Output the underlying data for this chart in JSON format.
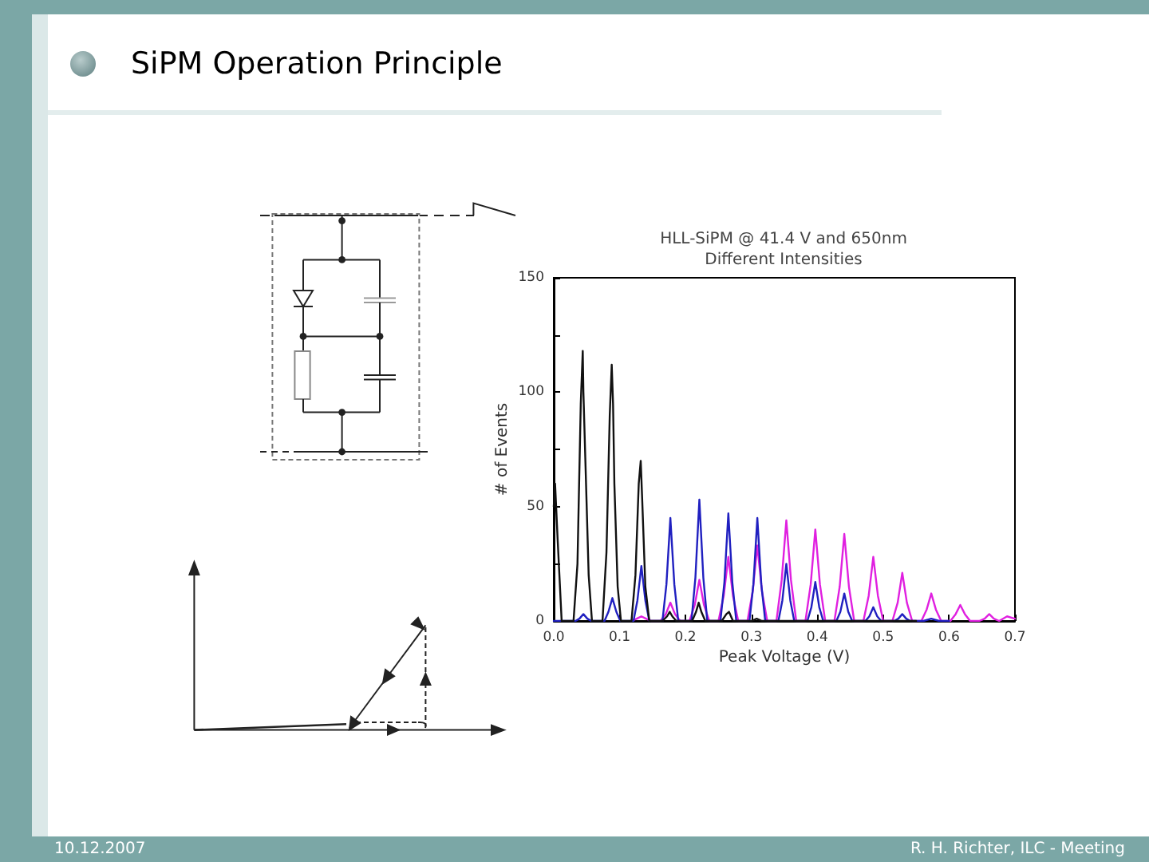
{
  "chart_data": {
    "type": "line",
    "title": "SiPM Operation Principle",
    "subtitle": "HLL-SiPM @ 41.4 V and 650nm",
    "xlabel": "Peak Voltage (V)",
    "ylabel": "# of Events",
    "annotations": [
      "Different Intensities",
      "10.12.2007",
      "R. H. Richter, ILC - Meeting"
    ],
    "xlim": [
      0,
      0.7
    ],
    "xticks": [
      {
        "value": 0,
        "label": "0.0"
      },
      0.1,
      0.2,
      0.3,
      0.4,
      0.5,
      0.6,
      0.7
    ],
    "ylim": [
      0,
      150
    ],
    "yticks": [
      0,
      {
        "value": 25,
        "label": null
      },
      50,
      {
        "value": 75,
        "label": null
      },
      100,
      {
        "value": 125,
        "label": null
      },
      150
    ],
    "marker": "none",
    "line_style": "solid",
    "series": [
      {
        "color": "#e020e0",
        "x": [
          0.118,
          0.126,
          0.133,
          0.14,
          0.148,
          0.162,
          0.17,
          0.177,
          0.184,
          0.192,
          0.206,
          0.214,
          0.221,
          0.228,
          0.236,
          0.25,
          0.258,
          0.265,
          0.272,
          0.28,
          0.294,
          0.302,
          0.309,
          0.316,
          0.324,
          0.338,
          0.346,
          0.353,
          0.36,
          0.368,
          0.382,
          0.39,
          0.397,
          0.404,
          0.412,
          0.426,
          0.434,
          0.441,
          0.448,
          0.456,
          0.47,
          0.478,
          0.485,
          0.492,
          0.5,
          0.514,
          0.522,
          0.529,
          0.536,
          0.544,
          0.558,
          0.566,
          0.573,
          0.58,
          0.588,
          0.602,
          0.61,
          0.617,
          0.624,
          0.632,
          0.646,
          0.654,
          0.661,
          0.668,
          0.676,
          0.688,
          0.7
        ],
        "values": [
          0,
          1,
          2,
          1,
          0,
          0,
          3,
          8,
          3,
          0,
          0,
          7,
          18,
          7,
          0,
          0,
          11,
          28,
          11,
          0,
          0,
          13,
          33,
          13,
          0,
          0,
          18,
          44,
          18,
          0,
          0,
          16,
          40,
          16,
          0,
          0,
          15,
          38,
          15,
          0,
          0,
          11,
          28,
          11,
          0,
          0,
          8,
          21,
          8,
          0,
          0,
          5,
          12,
          5,
          0,
          0,
          3,
          7,
          3,
          0,
          0,
          1,
          3,
          1,
          0,
          2,
          1
        ]
      },
      {
        "color": "#2020c0",
        "x": [
          0,
          0.033,
          0.039,
          0.045,
          0.051,
          0.057,
          0.077,
          0.083,
          0.089,
          0.095,
          0.101,
          0.121,
          0.127,
          0.133,
          0.139,
          0.145,
          0.165,
          0.171,
          0.177,
          0.183,
          0.189,
          0.209,
          0.215,
          0.221,
          0.227,
          0.233,
          0.253,
          0.259,
          0.265,
          0.271,
          0.277,
          0.297,
          0.303,
          0.309,
          0.315,
          0.321,
          0.341,
          0.347,
          0.353,
          0.359,
          0.365,
          0.385,
          0.391,
          0.397,
          0.403,
          0.409,
          0.429,
          0.435,
          0.441,
          0.447,
          0.453,
          0.473,
          0.479,
          0.485,
          0.491,
          0.497,
          0.517,
          0.523,
          0.529,
          0.535,
          0.541,
          0.561,
          0.573,
          0.585,
          0.6
        ],
        "values": [
          0,
          0,
          1,
          3,
          1,
          0,
          0,
          4,
          10,
          4,
          0,
          0,
          9,
          24,
          9,
          0,
          0,
          16,
          45,
          16,
          0,
          0,
          19,
          53,
          19,
          0,
          0,
          17,
          47,
          17,
          0,
          0,
          16,
          45,
          16,
          0,
          0,
          9,
          25,
          9,
          0,
          0,
          6,
          17,
          6,
          0,
          0,
          4,
          12,
          4,
          0,
          0,
          2,
          6,
          2,
          0,
          0,
          1,
          3,
          1,
          0,
          0,
          1,
          0,
          0
        ]
      },
      {
        "color": "#111111",
        "x": [
          0,
          0.002,
          0.006,
          0.012,
          0.03,
          0.036,
          0.041,
          0.044,
          0.045,
          0.048,
          0.053,
          0.058,
          0.074,
          0.08,
          0.085,
          0.088,
          0.09,
          0.092,
          0.097,
          0.102,
          0.118,
          0.124,
          0.129,
          0.132,
          0.134,
          0.139,
          0.145,
          0.165,
          0.172,
          0.176,
          0.18,
          0.186,
          0.21,
          0.216,
          0.22,
          0.224,
          0.23,
          0.255,
          0.262,
          0.266,
          0.272,
          0.3,
          0.308,
          0.316,
          0.55
        ],
        "values": [
          50,
          60,
          35,
          0,
          0,
          25,
          95,
          118,
          100,
          70,
          20,
          0,
          0,
          30,
          90,
          112,
          95,
          60,
          15,
          0,
          0,
          20,
          60,
          70,
          55,
          15,
          0,
          0,
          2,
          4,
          2,
          0,
          0,
          4,
          8,
          4,
          0,
          0,
          3,
          4,
          0,
          0,
          1,
          0,
          0
        ]
      }
    ]
  }
}
